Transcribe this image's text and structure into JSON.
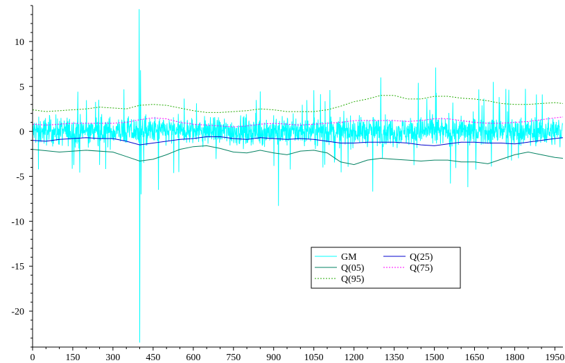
{
  "chart_data": {
    "type": "line",
    "title": "",
    "xlabel": "",
    "ylabel": "",
    "xlim": [
      0,
      1980
    ],
    "ylim": [
      -24,
      14
    ],
    "x_ticks": [
      0,
      150,
      300,
      450,
      600,
      750,
      900,
      1050,
      1200,
      1350,
      1500,
      1650,
      1800,
      1950
    ],
    "y_ticks": [
      10,
      5,
      0,
      -5,
      -10,
      -15,
      -20
    ],
    "grid": false,
    "legend_position": "lower-right",
    "noise_series": {
      "name": "GM",
      "color": "#00ffff",
      "n_points": 1980,
      "typical_range": [
        -3.5,
        3.5
      ],
      "spikes": [
        {
          "x": 398,
          "y": 13.6
        },
        {
          "x": 400,
          "y": -23.5
        },
        {
          "x": 403,
          "y": 6.8
        },
        {
          "x": 405,
          "y": -7.0
        },
        {
          "x": 918,
          "y": -8.3
        },
        {
          "x": 1505,
          "y": 7.1
        },
        {
          "x": 1270,
          "y": -6.7
        },
        {
          "x": 1625,
          "y": -6.2
        },
        {
          "x": 1300,
          "y": 6.0
        },
        {
          "x": 1720,
          "y": 5.5
        },
        {
          "x": 1440,
          "y": 5.4
        },
        {
          "x": 1110,
          "y": 4.6
        },
        {
          "x": 470,
          "y": -6.5
        },
        {
          "x": 1560,
          "y": -5.8
        }
      ]
    },
    "series": [
      {
        "name": "Q(05)",
        "color": "#008060",
        "style": "solid",
        "x": [
          0,
          100,
          200,
          300,
          350,
          400,
          450,
          500,
          550,
          600,
          650,
          700,
          750,
          800,
          850,
          900,
          950,
          1000,
          1050,
          1100,
          1150,
          1200,
          1250,
          1300,
          1350,
          1400,
          1450,
          1500,
          1550,
          1600,
          1650,
          1700,
          1750,
          1800,
          1850,
          1900,
          1950,
          1980
        ],
        "y": [
          -2.0,
          -2.3,
          -2.1,
          -2.3,
          -2.8,
          -3.3,
          -3.1,
          -2.6,
          -2.0,
          -1.7,
          -1.6,
          -1.9,
          -2.3,
          -2.4,
          -2.1,
          -2.4,
          -2.6,
          -2.2,
          -2.1,
          -2.4,
          -3.4,
          -3.7,
          -3.2,
          -3.0,
          -3.1,
          -3.2,
          -3.3,
          -3.2,
          -3.2,
          -3.4,
          -3.4,
          -3.6,
          -3.1,
          -2.6,
          -2.3,
          -2.6,
          -2.9,
          -3.0
        ]
      },
      {
        "name": "Q(25)",
        "color": "#0000cc",
        "style": "solid",
        "x": [
          0,
          50,
          100,
          150,
          200,
          250,
          300,
          350,
          400,
          450,
          500,
          550,
          600,
          650,
          700,
          750,
          800,
          850,
          900,
          950,
          1000,
          1050,
          1100,
          1150,
          1200,
          1250,
          1300,
          1350,
          1400,
          1450,
          1500,
          1550,
          1600,
          1650,
          1700,
          1750,
          1800,
          1850,
          1900,
          1950,
          1980
        ],
        "y": [
          -1.0,
          -1.1,
          -0.9,
          -0.8,
          -0.7,
          -0.8,
          -0.8,
          -1.1,
          -1.5,
          -1.3,
          -1.1,
          -0.9,
          -0.8,
          -0.6,
          -0.6,
          -0.8,
          -0.9,
          -0.7,
          -0.8,
          -0.9,
          -0.8,
          -0.9,
          -1.1,
          -1.3,
          -1.3,
          -1.2,
          -1.2,
          -1.2,
          -1.3,
          -1.5,
          -1.6,
          -1.4,
          -1.2,
          -1.2,
          -1.3,
          -1.3,
          -1.4,
          -1.2,
          -1.0,
          -0.8,
          -0.7
        ]
      },
      {
        "name": "Q(75)",
        "color": "#ff00ff",
        "style": "dotted",
        "x": [
          0,
          50,
          100,
          150,
          200,
          250,
          300,
          350,
          400,
          450,
          500,
          550,
          600,
          650,
          700,
          750,
          800,
          850,
          900,
          950,
          1000,
          1050,
          1100,
          1150,
          1200,
          1250,
          1300,
          1350,
          1400,
          1450,
          1500,
          1550,
          1600,
          1650,
          1700,
          1750,
          1800,
          1850,
          1900,
          1950,
          1980
        ],
        "y": [
          0.8,
          0.7,
          0.8,
          0.9,
          0.9,
          0.9,
          0.9,
          1.0,
          1.3,
          1.5,
          1.4,
          1.0,
          0.8,
          0.7,
          0.6,
          0.5,
          0.6,
          0.8,
          0.9,
          0.8,
          0.7,
          0.8,
          0.9,
          1.0,
          1.2,
          1.2,
          1.2,
          1.2,
          1.1,
          1.2,
          1.4,
          1.4,
          1.2,
          1.0,
          0.9,
          0.9,
          1.0,
          1.1,
          1.3,
          1.5,
          1.6
        ]
      },
      {
        "name": "Q(95)",
        "color": "#22aa00",
        "style": "dotted",
        "x": [
          0,
          50,
          100,
          150,
          200,
          250,
          300,
          350,
          400,
          450,
          500,
          550,
          600,
          650,
          700,
          750,
          800,
          850,
          900,
          950,
          1000,
          1050,
          1100,
          1150,
          1200,
          1250,
          1300,
          1350,
          1400,
          1450,
          1500,
          1550,
          1600,
          1650,
          1700,
          1750,
          1800,
          1850,
          1900,
          1950,
          1980
        ],
        "y": [
          2.4,
          2.2,
          2.3,
          2.4,
          2.5,
          2.7,
          2.6,
          2.5,
          2.9,
          3.0,
          2.9,
          2.6,
          2.3,
          2.1,
          2.1,
          2.2,
          2.3,
          2.5,
          2.4,
          2.2,
          2.2,
          2.2,
          2.4,
          2.8,
          3.3,
          3.6,
          4.0,
          4.0,
          3.6,
          3.6,
          3.9,
          3.9,
          3.7,
          3.6,
          3.4,
          3.1,
          3.0,
          3.0,
          3.1,
          3.2,
          3.1
        ]
      }
    ]
  }
}
